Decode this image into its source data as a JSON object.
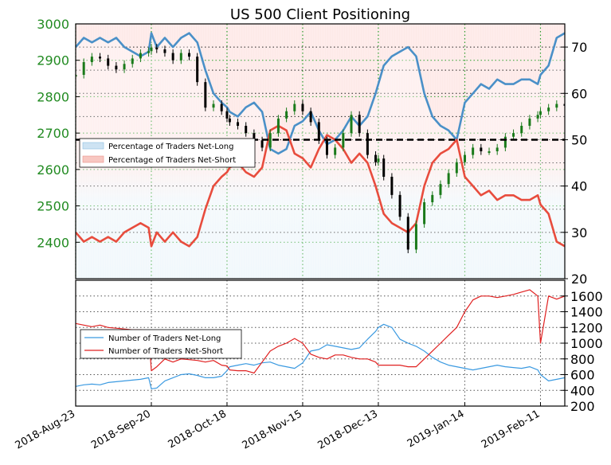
{
  "chart_data": [
    {
      "type": "line",
      "title": "US 500 Client Positioning",
      "x_dates": [
        "2018-08-23",
        "2018-08-26",
        "2018-08-29",
        "2018-09-01",
        "2018-09-04",
        "2018-09-07",
        "2018-09-10",
        "2018-09-13",
        "2018-09-16",
        "2018-09-19",
        "2018-09-20",
        "2018-09-22",
        "2018-09-25",
        "2018-09-28",
        "2018-10-01",
        "2018-10-04",
        "2018-10-07",
        "2018-10-10",
        "2018-10-13",
        "2018-10-16",
        "2018-10-18",
        "2018-10-19",
        "2018-10-22",
        "2018-10-25",
        "2018-10-28",
        "2018-10-31",
        "2018-11-03",
        "2018-11-06",
        "2018-11-09",
        "2018-11-12",
        "2018-11-15",
        "2018-11-18",
        "2018-11-21",
        "2018-11-24",
        "2018-11-27",
        "2018-11-30",
        "2018-12-03",
        "2018-12-06",
        "2018-12-09",
        "2018-12-12",
        "2018-12-13",
        "2018-12-15",
        "2018-12-18",
        "2018-12-21",
        "2018-12-24",
        "2018-12-27",
        "2018-12-30",
        "2019-01-02",
        "2019-01-05",
        "2019-01-08",
        "2019-01-11",
        "2019-01-14",
        "2019-01-17",
        "2019-01-20",
        "2019-01-23",
        "2019-01-26",
        "2019-01-29",
        "2019-02-01",
        "2019-02-04",
        "2019-02-07",
        "2019-02-10",
        "2019-02-11",
        "2019-02-14",
        "2019-02-17",
        "2019-02-20"
      ],
      "x_tick_labels": [
        "2018-Aug-23",
        "2018-Sep-20",
        "2018-Oct-18",
        "2018-Nov-15",
        "2018-Dec-13",
        "2019-Jan-14",
        "2019-Feb-11"
      ],
      "y_left": {
        "range": [
          2300,
          3000
        ],
        "ticks": [
          2400,
          2500,
          2600,
          2700,
          2800,
          2900,
          3000
        ],
        "color": "#228b22"
      },
      "y_right": {
        "range": [
          20,
          75
        ],
        "ticks": [
          20,
          30,
          40,
          50,
          60,
          70
        ]
      },
      "reference_line_pct": 50,
      "price_candles": {
        "color_up": "#1a7a1a",
        "color_down": "#000000",
        "close": [
          2860,
          2895,
          2910,
          2905,
          2885,
          2875,
          2890,
          2905,
          2920,
          2925,
          2935,
          2930,
          2920,
          2900,
          2920,
          2910,
          2840,
          2770,
          2780,
          2760,
          2740,
          2730,
          2720,
          2700,
          2680,
          2660,
          2700,
          2740,
          2760,
          2780,
          2760,
          2730,
          2680,
          2640,
          2660,
          2700,
          2750,
          2700,
          2640,
          2620,
          2630,
          2580,
          2530,
          2470,
          2380,
          2450,
          2510,
          2530,
          2560,
          2590,
          2620,
          2640,
          2660,
          2650,
          2650,
          2660,
          2690,
          2700,
          2720,
          2740,
          2750,
          2760,
          2770,
          2780,
          2775
        ]
      },
      "series": [
        {
          "name": "Percentage of Traders Net-Long",
          "color": "#4a90c8",
          "values": [
            70,
            72,
            71,
            72,
            71,
            72,
            70,
            69,
            68,
            69,
            73,
            70,
            72,
            70,
            72,
            73,
            71,
            65,
            60,
            58,
            57,
            56,
            55,
            57,
            58,
            56,
            48,
            47,
            48,
            53,
            54,
            56,
            52,
            49,
            50,
            52,
            55,
            53,
            55,
            60,
            62,
            66,
            68,
            69,
            70,
            68,
            60,
            55,
            53,
            52,
            50,
            58,
            60,
            62,
            61,
            63,
            62,
            62,
            63,
            63,
            62,
            64,
            66,
            72,
            73
          ]
        },
        {
          "name": "Percentage of Traders Net-Short",
          "color": "#e84c3d",
          "values": [
            30,
            28,
            29,
            28,
            29,
            28,
            30,
            31,
            32,
            31,
            27,
            30,
            28,
            30,
            28,
            27,
            29,
            35,
            40,
            42,
            43,
            44,
            45,
            43,
            42,
            44,
            52,
            53,
            52,
            47,
            46,
            44,
            48,
            51,
            50,
            48,
            45,
            47,
            45,
            40,
            38,
            34,
            32,
            31,
            30,
            32,
            40,
            45,
            47,
            48,
            50,
            42,
            40,
            38,
            39,
            37,
            38,
            38,
            37,
            37,
            38,
            36,
            34,
            28,
            27
          ]
        }
      ],
      "legend": "left"
    },
    {
      "type": "line",
      "y_ticks": [
        200,
        400,
        600,
        800,
        1000,
        1200,
        1400,
        1600
      ],
      "y_range": [
        200,
        1800
      ],
      "series": [
        {
          "name": "Number of Traders Net-Long",
          "color": "#3b9ae1",
          "values": [
            450,
            470,
            480,
            470,
            500,
            510,
            520,
            530,
            540,
            560,
            420,
            430,
            520,
            560,
            600,
            610,
            590,
            560,
            560,
            580,
            650,
            700,
            720,
            740,
            720,
            750,
            760,
            720,
            700,
            680,
            750,
            900,
            920,
            980,
            960,
            940,
            920,
            940,
            1050,
            1150,
            1200,
            1240,
            1200,
            1050,
            1000,
            960,
            900,
            820,
            760,
            720,
            700,
            680,
            660,
            680,
            700,
            720,
            700,
            690,
            680,
            700,
            660,
            600,
            520,
            540,
            560
          ]
        },
        {
          "name": "Number of Traders Net-Short",
          "color": "#e02020",
          "values": [
            1250,
            1230,
            1210,
            1230,
            1200,
            1190,
            1180,
            1170,
            1170,
            1160,
            650,
            700,
            800,
            760,
            800,
            790,
            780,
            760,
            780,
            720,
            710,
            660,
            650,
            650,
            620,
            760,
            900,
            960,
            1000,
            1060,
            1000,
            860,
            820,
            800,
            850,
            850,
            820,
            800,
            800,
            760,
            720,
            720,
            720,
            720,
            700,
            700,
            800,
            900,
            1000,
            1100,
            1200,
            1400,
            1550,
            1600,
            1600,
            1580,
            1600,
            1620,
            1650,
            1680,
            1600,
            1000,
            1600,
            1560,
            1600
          ]
        }
      ],
      "legend": "left"
    }
  ],
  "labels": {
    "title": "US 500 Client Positioning",
    "legend_top": [
      "Percentage of Traders Net-Long",
      "Percentage of Traders Net-Short"
    ],
    "legend_bottom": [
      "Number of Traders Net-Long",
      "Number of Traders Net-Short"
    ]
  },
  "colors": {
    "top_bg_top": "#fde8e6",
    "top_bg_bottom": "#e8f3fa",
    "grid_green": "#2a9d2a",
    "grid_black": "#333333",
    "ref_line": "#000000"
  }
}
